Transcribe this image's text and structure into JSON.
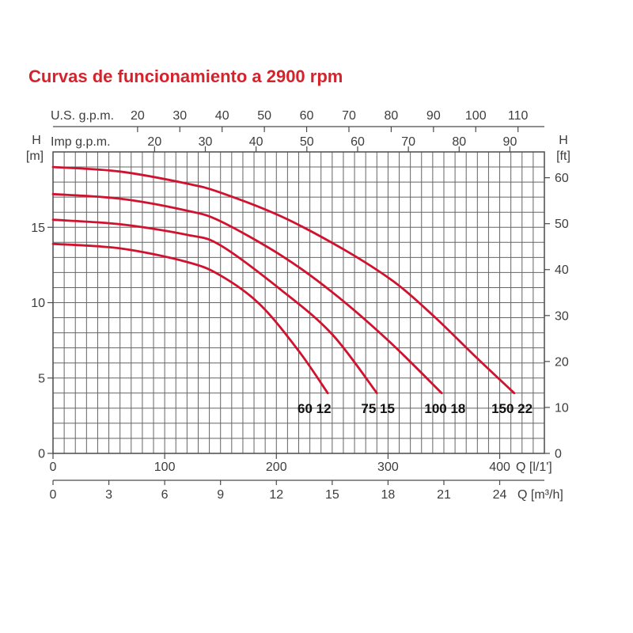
{
  "title": {
    "text": "Curvas de funcionamiento a 2900 rpm",
    "color": "#d5232c"
  },
  "colors": {
    "background": "#ffffff",
    "title_red": "#d5232c",
    "curve_red": "#d0122f",
    "grid": "#656565",
    "frame": "#4a4a4a",
    "text": "#3d3d3d",
    "curve_label_text": "#111111"
  },
  "chart_data": {
    "type": "line",
    "title": "Curvas de funcionamiento a 2900 rpm",
    "grid": {
      "x_step_lpm": 10,
      "y_step_m": 1,
      "grid_on": true
    },
    "x_axis_bottom_lpm": {
      "label": "Q [l/1']",
      "ticks": [
        0,
        100,
        200,
        300,
        400
      ],
      "range_lpm": [
        0,
        440
      ]
    },
    "x_axis_bottom_m3h": {
      "label": "Q [m³/h]",
      "ticks": [
        0,
        3,
        6,
        9,
        12,
        15,
        18,
        21,
        24
      ],
      "lpm_per_unit": 16.6667
    },
    "x_axis_top_usgpm": {
      "label": "U.S. g.p.m.",
      "ticks": [
        20,
        30,
        40,
        50,
        60,
        70,
        80,
        90,
        100,
        110
      ],
      "lpm_per_unit": 3.7854
    },
    "x_axis_top_impgpm": {
      "label": "Imp g.p.m.",
      "ticks": [
        20,
        30,
        40,
        50,
        60,
        70,
        80,
        90
      ],
      "lpm_per_unit": 4.5461
    },
    "y_axis_left_m": {
      "label": "H",
      "unit_label": "[m]",
      "ticks": [
        0,
        5,
        10,
        15
      ],
      "range_m": [
        0,
        20
      ]
    },
    "y_axis_right_ft": {
      "label": "H",
      "unit_label": "[ft]",
      "ticks": [
        0,
        10,
        20,
        30,
        40,
        50,
        60
      ],
      "m_per_unit": 0.3048
    },
    "series": [
      {
        "name": "60 12",
        "label_pos_lpm_m": [
          234,
          3.0
        ],
        "points_lpm_m": [
          [
            0,
            13.9
          ],
          [
            60,
            13.6
          ],
          [
            120,
            12.7
          ],
          [
            150,
            11.8
          ],
          [
            185,
            9.9
          ],
          [
            220,
            6.8
          ],
          [
            246,
            4.0
          ]
        ]
      },
      {
        "name": "75 15",
        "label_pos_lpm_m": [
          291,
          3.0
        ],
        "points_lpm_m": [
          [
            0,
            15.5
          ],
          [
            60,
            15.2
          ],
          [
            120,
            14.5
          ],
          [
            150,
            13.8
          ],
          [
            205,
            10.8
          ],
          [
            250,
            7.9
          ],
          [
            290,
            4.0
          ]
        ]
      },
      {
        "name": "100 18",
        "label_pos_lpm_m": [
          351,
          3.0
        ],
        "points_lpm_m": [
          [
            0,
            17.2
          ],
          [
            60,
            16.9
          ],
          [
            120,
            16.1
          ],
          [
            150,
            15.4
          ],
          [
            205,
            13.1
          ],
          [
            250,
            10.7
          ],
          [
            300,
            7.5
          ],
          [
            348,
            4.0
          ]
        ]
      },
      {
        "name": "150 22",
        "label_pos_lpm_m": [
          411,
          3.0
        ],
        "points_lpm_m": [
          [
            0,
            19.0
          ],
          [
            60,
            18.7
          ],
          [
            120,
            17.9
          ],
          [
            150,
            17.3
          ],
          [
            205,
            15.7
          ],
          [
            261,
            13.5
          ],
          [
            305,
            11.4
          ],
          [
            341,
            9.1
          ],
          [
            380,
            6.3
          ],
          [
            413,
            4.0
          ]
        ]
      }
    ]
  }
}
